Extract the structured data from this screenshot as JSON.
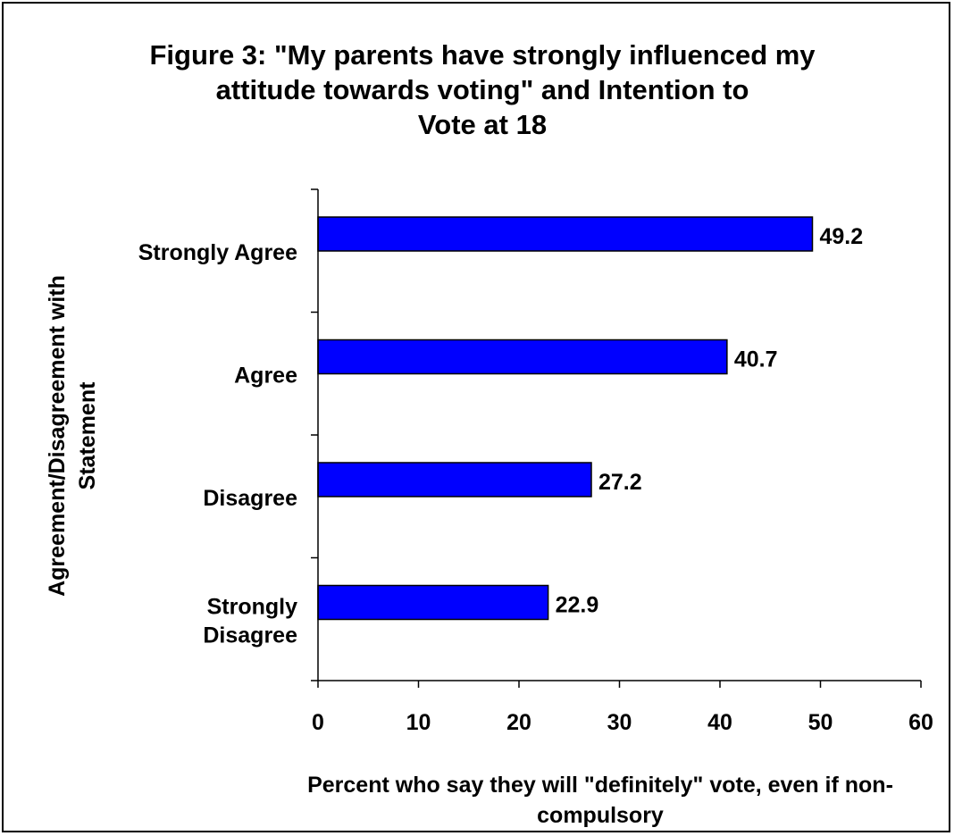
{
  "chart_data": {
    "type": "bar",
    "orientation": "horizontal",
    "title_lines": [
      "Figure 3: \"My parents have strongly influenced my",
      "attitude towards voting\" and Intention to",
      "Vote at 18"
    ],
    "categories": [
      [
        "Strongly Agree"
      ],
      [
        "Agree"
      ],
      [
        "Disagree"
      ],
      [
        "Strongly",
        "Disagree"
      ]
    ],
    "values": [
      49.2,
      40.7,
      27.2,
      22.9
    ],
    "data_labels": [
      "49.2",
      "40.7",
      "27.2",
      "22.9"
    ],
    "xlabel_lines": [
      "Percent who say they will \"definitely\" vote, even if non-",
      "compulsory"
    ],
    "ylabel_lines": [
      "Agreement/Disagreement with",
      "Statement"
    ],
    "xlim": [
      0,
      60
    ],
    "xticks": [
      0,
      10,
      20,
      30,
      40,
      50,
      60
    ],
    "grid": false,
    "legend": "none",
    "bar_color": "#0000FF",
    "bar_edge_color": "#000000"
  }
}
